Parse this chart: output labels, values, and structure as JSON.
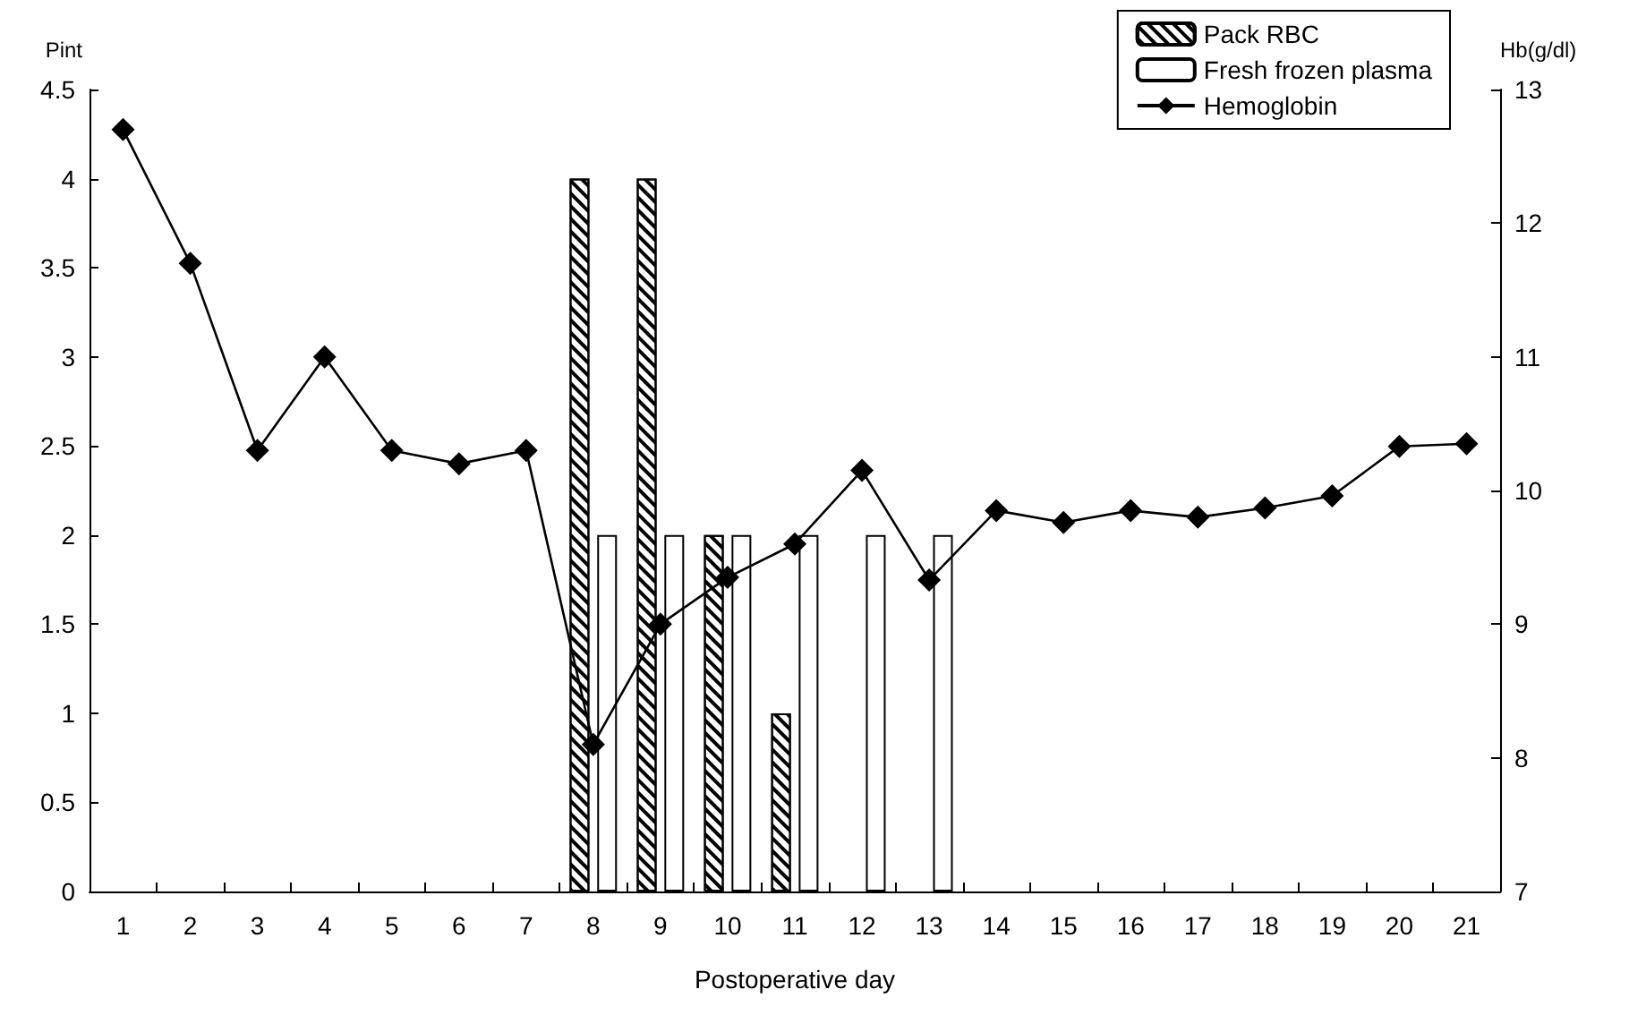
{
  "chart_data": {
    "type": "bar",
    "xlabel": "Postoperative day",
    "ylabel": "Pint",
    "y2label": "Hb(g/dl)",
    "categories": [
      "1",
      "2",
      "3",
      "4",
      "5",
      "6",
      "7",
      "8",
      "9",
      "10",
      "11",
      "12",
      "13",
      "14",
      "15",
      "16",
      "17",
      "18",
      "19",
      "20",
      "21"
    ],
    "series": [
      {
        "name": "Pack RBC",
        "color": "#000000",
        "values": [
          null,
          null,
          null,
          null,
          null,
          null,
          null,
          4,
          4,
          2,
          1,
          null,
          null,
          null,
          null,
          null,
          null,
          null,
          null,
          null,
          null
        ]
      },
      {
        "name": "Fresh frozen plasma",
        "color": "#ffffff",
        "values": [
          null,
          null,
          null,
          null,
          null,
          null,
          null,
          2,
          2,
          2,
          2,
          2,
          2,
          null,
          null,
          null,
          null,
          null,
          null,
          null,
          null
        ]
      },
      {
        "name": "Hemoglobin",
        "type": "line",
        "axis": "y2",
        "color": "#000000",
        "marker": "diamond",
        "values": [
          12.7,
          11.7,
          10.3,
          11.0,
          10.3,
          10.2,
          10.3,
          8.1,
          9.0,
          9.35,
          9.6,
          10.15,
          9.33,
          9.85,
          9.76,
          9.85,
          9.8,
          9.87,
          9.96,
          10.33,
          10.35
        ]
      }
    ],
    "ylim": [
      0,
      4.5
    ],
    "yticks": [
      0,
      0.5,
      1,
      1.5,
      2,
      2.5,
      3,
      3.5,
      4,
      4.5
    ],
    "y2lim": [
      7,
      13
    ],
    "y2ticks": [
      7,
      8,
      9,
      10,
      11,
      12,
      13
    ],
    "grid": false,
    "legend": "top right"
  }
}
